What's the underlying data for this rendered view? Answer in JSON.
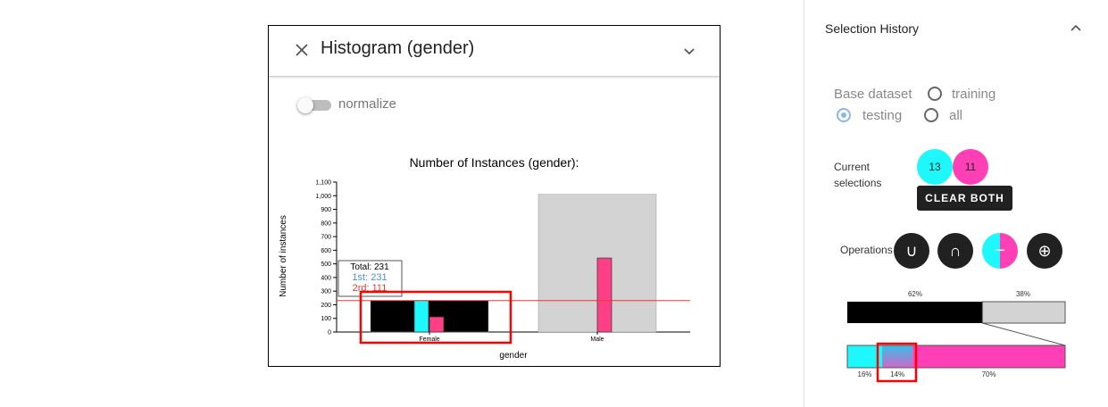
{
  "histogram_card": {
    "title": "Histogram (gender)",
    "normalize_label": "normalize",
    "normalize_on": false
  },
  "chart_data": {
    "type": "bar",
    "title": "Number of Instances (gender):",
    "xlabel": "gender",
    "ylabel": "Number of instances",
    "categories": [
      "Female",
      "Male"
    ],
    "ylim": [
      0,
      1100
    ],
    "yticks": [
      "0",
      "100",
      "200",
      "300",
      "400",
      "500",
      "600",
      "700",
      "800",
      "900",
      "1,000",
      "1,100"
    ],
    "series": [
      {
        "values": [
          231,
          1010
        ],
        "colors": [
          "#000000",
          "#d3d3d3"
        ]
      },
      {
        "values": [
          231,
          0
        ],
        "color": "#1ef7fb"
      },
      {
        "values": [
          111,
          543
        ],
        "color": "#ff3f85"
      }
    ],
    "reference_line": 231,
    "tooltip": {
      "total": "Total: 231",
      "first": "1st: 231",
      "second": "2rd: 111"
    }
  },
  "side_panel": {
    "title": "Selection History",
    "base_dataset_label": "Base dataset",
    "options": {
      "training": "training",
      "testing": "testing",
      "all": "all"
    },
    "selected_option": "testing",
    "current_selections_label": "Current\nselections",
    "selection_1": "13",
    "selection_2": "11",
    "clear_label": "CLEAR BOTH",
    "operations_label": "Operations",
    "op_union": "∪",
    "op_intersect": "∩",
    "op_minus": "−",
    "op_xor": "⊕",
    "colors": {
      "selection_1": "#1ef7fb",
      "selection_2": "#ff3fb5",
      "dataset": "#000000"
    },
    "top_bar": {
      "share": 0.62,
      "label_1": "62%",
      "label_2": "38%"
    },
    "bottom_bar": {
      "shares": [
        0.16,
        0.14,
        0.7
      ],
      "labels": [
        "16%",
        "14%",
        "70%"
      ]
    }
  }
}
